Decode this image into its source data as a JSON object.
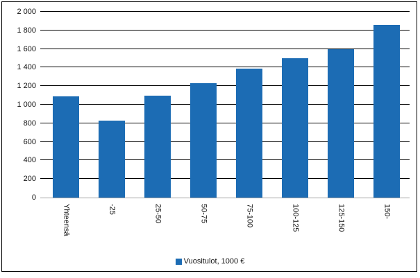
{
  "chart_data": {
    "type": "bar",
    "title": "",
    "categories": [
      "Yhteensä",
      "-25",
      "25-50",
      "50-75",
      "75-100",
      "100-125",
      "125-150",
      "150-"
    ],
    "values": [
      1090,
      830,
      1100,
      1235,
      1390,
      1500,
      1600,
      1855
    ],
    "series_name": "Vuositulot, 1000 €",
    "xlabel": "",
    "ylabel": "",
    "ylim": [
      0,
      2000
    ],
    "ytick_step": 200,
    "ytick_labels": [
      "0",
      "200",
      "400",
      "600",
      "800",
      "1 000",
      "1 200",
      "1 400",
      "1 600",
      "1 800",
      "2 000"
    ],
    "grid": true,
    "legend_position": "bottom",
    "bar_color": "#1c6cb4"
  },
  "legend": {
    "label": "Vuositulot, 1000 €",
    "marker_color": "#1c6cb4"
  },
  "colors": {
    "bar": "#1c6cb4",
    "gridline": "#000000",
    "axis_line": "#a0a0a0",
    "border": "#000000",
    "text": "#111111",
    "background": "#ffffff"
  }
}
